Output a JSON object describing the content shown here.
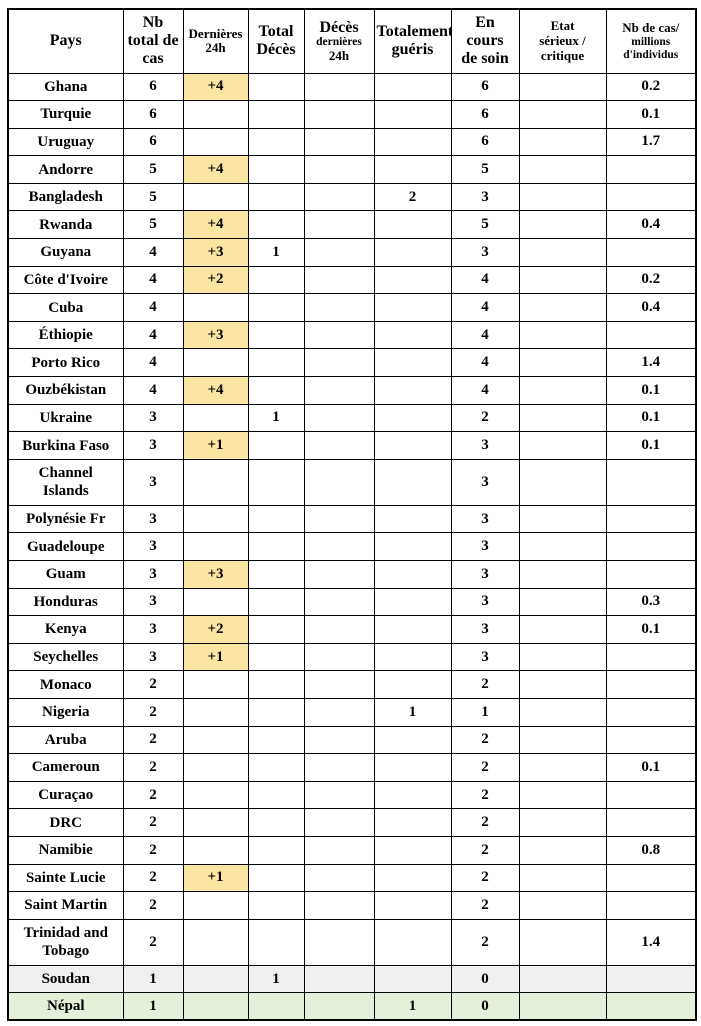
{
  "colors": {
    "highlight_yellow": "#FBE5A2",
    "row_gray": "#EFEFEF",
    "row_green": "#E4F0D9",
    "border": "#000000"
  },
  "table": {
    "columns": [
      {
        "id": "pays",
        "label": "Pays",
        "lines": [
          {
            "text": "Pays",
            "size": "lg"
          }
        ]
      },
      {
        "id": "nb-total-cas",
        "label": "Nb total de cas",
        "lines": [
          {
            "text": "Nb",
            "size": "lg"
          },
          {
            "text": "total de",
            "size": "lg"
          },
          {
            "text": "cas",
            "size": "lg"
          }
        ]
      },
      {
        "id": "dernieres-24h",
        "label": "Dernières 24h",
        "lines": [
          {
            "text": "Dernières",
            "size": "md"
          },
          {
            "text": "24h",
            "size": "md"
          }
        ]
      },
      {
        "id": "total-deces",
        "label": "Total Décès",
        "lines": [
          {
            "text": "Total",
            "size": "lg"
          },
          {
            "text": "Décès",
            "size": "lg"
          }
        ]
      },
      {
        "id": "deces-dernieres-24h",
        "label": "Décès dernières 24h",
        "lines": [
          {
            "text": "Décès",
            "size": "lg"
          },
          {
            "text": "dernières",
            "size": "sm"
          },
          {
            "text": "24h",
            "size": "md"
          }
        ]
      },
      {
        "id": "totalement-gueris",
        "label": "Totalement guéris",
        "lines": [
          {
            "text": "Totalement",
            "size": "lg"
          },
          {
            "text": "guéris",
            "size": "lg"
          }
        ]
      },
      {
        "id": "en-cours-soin",
        "label": "En cours de soin",
        "lines": [
          {
            "text": "En",
            "size": "lg"
          },
          {
            "text": "cours",
            "size": "lg"
          },
          {
            "text": "de soin",
            "size": "lg"
          }
        ]
      },
      {
        "id": "etat-serieux",
        "label": "Etat sérieux / critique",
        "lines": [
          {
            "text": "Etat",
            "size": "md"
          },
          {
            "text": "sérieux /",
            "size": "md"
          },
          {
            "text": "critique",
            "size": "md"
          }
        ]
      },
      {
        "id": "cas-par-million",
        "label": "Nb de cas/ millions d'individus",
        "lines": [
          {
            "text": "Nb de cas/",
            "size": "md"
          },
          {
            "text": "millions",
            "size": "sm"
          },
          {
            "text": "d'individus",
            "size": "sm"
          }
        ]
      }
    ],
    "rows": [
      {
        "pays": "Ghana",
        "variant": "normal",
        "cells": [
          "6",
          "+4",
          "",
          "",
          "",
          "6",
          "",
          "0.2"
        ]
      },
      {
        "pays": "Turquie",
        "variant": "normal",
        "cells": [
          "6",
          "",
          "",
          "",
          "",
          "6",
          "",
          "0.1"
        ]
      },
      {
        "pays": "Uruguay",
        "variant": "normal",
        "cells": [
          "6",
          "",
          "",
          "",
          "",
          "6",
          "",
          "1.7"
        ]
      },
      {
        "pays": "Andorre",
        "variant": "normal",
        "cells": [
          "5",
          "+4",
          "",
          "",
          "",
          "5",
          "",
          ""
        ]
      },
      {
        "pays": "Bangladesh",
        "variant": "normal",
        "cells": [
          "5",
          "",
          "",
          "",
          "2",
          "3",
          "",
          ""
        ]
      },
      {
        "pays": "Rwanda",
        "variant": "normal",
        "cells": [
          "5",
          "+4",
          "",
          "",
          "",
          "5",
          "",
          "0.4"
        ]
      },
      {
        "pays": "Guyana",
        "variant": "normal",
        "cells": [
          "4",
          "+3",
          "1",
          "",
          "",
          "3",
          "",
          ""
        ]
      },
      {
        "pays": "Côte d'Ivoire",
        "variant": "normal",
        "cells": [
          "4",
          "+2",
          "",
          "",
          "",
          "4",
          "",
          "0.2"
        ]
      },
      {
        "pays": "Cuba",
        "variant": "normal",
        "cells": [
          "4",
          "",
          "",
          "",
          "",
          "4",
          "",
          "0.4"
        ]
      },
      {
        "pays": "Éthiopie",
        "variant": "normal",
        "cells": [
          "4",
          "+3",
          "",
          "",
          "",
          "4",
          "",
          ""
        ]
      },
      {
        "pays": "Porto Rico",
        "variant": "normal",
        "cells": [
          "4",
          "",
          "",
          "",
          "",
          "4",
          "",
          "1.4"
        ]
      },
      {
        "pays": "Ouzbékistan",
        "variant": "normal",
        "cells": [
          "4",
          "+4",
          "",
          "",
          "",
          "4",
          "",
          "0.1"
        ]
      },
      {
        "pays": "Ukraine",
        "variant": "normal",
        "cells": [
          "3",
          "",
          "1",
          "",
          "",
          "2",
          "",
          "0.1"
        ]
      },
      {
        "pays": "Burkina Faso",
        "variant": "normal",
        "cells": [
          "3",
          "+1",
          "",
          "",
          "",
          "3",
          "",
          "0.1"
        ]
      },
      {
        "pays": "Channel\nIslands",
        "variant": "tall",
        "cells": [
          "3",
          "",
          "",
          "",
          "",
          "3",
          "",
          ""
        ]
      },
      {
        "pays": "Polynésie Fr",
        "variant": "normal",
        "cells": [
          "3",
          "",
          "",
          "",
          "",
          "3",
          "",
          ""
        ]
      },
      {
        "pays": "Guadeloupe",
        "variant": "normal",
        "cells": [
          "3",
          "",
          "",
          "",
          "",
          "3",
          "",
          ""
        ]
      },
      {
        "pays": "Guam",
        "variant": "normal",
        "cells": [
          "3",
          "+3",
          "",
          "",
          "",
          "3",
          "",
          ""
        ]
      },
      {
        "pays": "Honduras",
        "variant": "normal",
        "cells": [
          "3",
          "",
          "",
          "",
          "",
          "3",
          "",
          "0.3"
        ]
      },
      {
        "pays": "Kenya",
        "variant": "normal",
        "cells": [
          "3",
          "+2",
          "",
          "",
          "",
          "3",
          "",
          "0.1"
        ]
      },
      {
        "pays": "Seychelles",
        "variant": "normal",
        "cells": [
          "3",
          "+1",
          "",
          "",
          "",
          "3",
          "",
          ""
        ]
      },
      {
        "pays": "Monaco",
        "variant": "normal",
        "cells": [
          "2",
          "",
          "",
          "",
          "",
          "2",
          "",
          ""
        ]
      },
      {
        "pays": "Nigeria",
        "variant": "normal",
        "cells": [
          "2",
          "",
          "",
          "",
          "1",
          "1",
          "",
          ""
        ]
      },
      {
        "pays": "Aruba",
        "variant": "normal",
        "cells": [
          "2",
          "",
          "",
          "",
          "",
          "2",
          "",
          ""
        ]
      },
      {
        "pays": "Cameroun",
        "variant": "normal",
        "cells": [
          "2",
          "",
          "",
          "",
          "",
          "2",
          "",
          "0.1"
        ]
      },
      {
        "pays": "Curaçao",
        "variant": "normal",
        "cells": [
          "2",
          "",
          "",
          "",
          "",
          "2",
          "",
          ""
        ]
      },
      {
        "pays": "DRC",
        "variant": "normal",
        "cells": [
          "2",
          "",
          "",
          "",
          "",
          "2",
          "",
          ""
        ]
      },
      {
        "pays": "Namibie",
        "variant": "normal",
        "cells": [
          "2",
          "",
          "",
          "",
          "",
          "2",
          "",
          "0.8"
        ]
      },
      {
        "pays": "Sainte Lucie",
        "variant": "normal",
        "cells": [
          "2",
          "+1",
          "",
          "",
          "",
          "2",
          "",
          ""
        ]
      },
      {
        "pays": "Saint Martin",
        "variant": "normal",
        "cells": [
          "2",
          "",
          "",
          "",
          "",
          "2",
          "",
          ""
        ]
      },
      {
        "pays": "Trinidad and\nTobago",
        "variant": "tall",
        "cells": [
          "2",
          "",
          "",
          "",
          "",
          "2",
          "",
          "1.4"
        ]
      },
      {
        "pays": "Soudan",
        "variant": "gray",
        "cells": [
          "1",
          "",
          "1",
          "",
          "",
          "0",
          "",
          ""
        ]
      },
      {
        "pays": "Népal",
        "variant": "green",
        "cells": [
          "1",
          "",
          "",
          "",
          "1",
          "0",
          "",
          ""
        ]
      }
    ]
  }
}
